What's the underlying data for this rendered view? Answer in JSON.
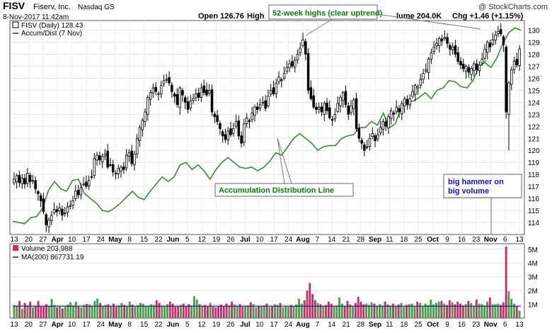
{
  "header": {
    "symbol": "FISV",
    "company": "Fiserv, Inc.",
    "exchange": "Nasdaq GS",
    "watermark": "@ StockCharts.com",
    "date_line": "8-Nov-2017 11:42am",
    "open_label": "Open 126.76",
    "high_label": "High",
    "volume_label": "lume 204.0K",
    "chg_label": "Chg +1.46 (+1.15%)"
  },
  "legend": {
    "price_series": "FISV (Daily) 128.43",
    "ad_series": "Accum/Dist (7 Nov)",
    "volume_series": "Volume 203,988",
    "ma_series": "MA(200) 867731.19"
  },
  "annotations": {
    "highs": "52-week highs (clear uptrend)",
    "adline": "Accumulation Distribution Line",
    "hammer_line1": "big hammer on",
    "hammer_line2": "big volume"
  },
  "colors": {
    "up_candle": "#ffffff",
    "down_candle": "#000000",
    "adline": "#3a8a3a",
    "vol_up": "#4f9a4f",
    "vol_down": "#c0306a",
    "ma_line": "#202080",
    "annotation_green": "#0a7a0a",
    "annotation_blue": "#1010c0"
  },
  "chart_data": [
    {
      "type": "candlestick",
      "title": "FISV (Daily) 128.43",
      "ylim": [
        113,
        130.8
      ],
      "y_ticks": [
        114,
        115,
        116,
        117,
        118,
        119,
        120,
        121,
        122,
        123,
        124,
        125,
        126,
        127,
        128,
        129,
        130
      ],
      "x_tick_labels": [
        "13",
        "20",
        "27",
        "Apr",
        "10",
        "17",
        "24",
        "May",
        "8",
        "15",
        "22",
        "Jun",
        "5",
        "12",
        "19",
        "26",
        "Jul",
        "10",
        "17",
        "24",
        "Aug",
        "7",
        "14",
        "21",
        "28",
        "Sep",
        "11",
        "18",
        "25",
        "Oct",
        "9",
        "16",
        "23",
        "Nov",
        "6",
        "13"
      ],
      "closes": [
        117.6,
        117.9,
        117.3,
        117.7,
        117.2,
        118.1,
        117.4,
        117.5,
        116.8,
        116.4,
        115.8,
        114.9,
        113.8,
        114.2,
        114.6,
        115.1,
        114.9,
        115.2,
        114.6,
        114.8,
        115.3,
        115.4,
        115.8,
        116.6,
        116.3,
        116.9,
        117.2,
        117.0,
        117.5,
        117.8,
        119.3,
        119.6,
        119.2,
        119.5,
        119.7,
        118.6,
        118.8,
        118.2,
        118.1,
        118.5,
        118.6,
        118.4,
        119.6,
        119.8,
        118.9,
        119.7,
        121.0,
        121.9,
        122.5,
        123.2,
        124.4,
        124.8,
        125.2,
        124.9,
        124.7,
        125.4,
        125.8,
        125.9,
        125.6,
        124.9,
        124.5,
        123.8,
        125.2,
        124.6,
        124.0,
        123.4,
        124.1,
        124.3,
        124.7,
        124.4,
        125.2,
        124.8,
        124.6,
        125.0,
        123.2,
        122.8,
        122.4,
        121.8,
        121.2,
        120.9,
        121.6,
        121.3,
        121.8,
        122.4,
        121.2,
        120.6,
        122.2,
        122.7,
        122.4,
        123.1,
        123.6,
        123.4,
        123.8,
        124.0,
        123.5,
        124.5,
        125.0,
        124.7,
        125.6,
        126.1,
        125.8,
        126.4,
        126.9,
        127.2,
        127.0,
        127.5,
        128.0,
        128.5,
        129.2,
        128.0,
        125.0,
        124.3,
        123.6,
        123.4,
        123.6,
        123.2,
        123.9,
        123.3,
        122.7,
        122.5,
        123.0,
        123.9,
        124.4,
        124.8,
        123.8,
        123.0,
        123.7,
        124.2,
        121.8,
        121.0,
        120.6,
        120.0,
        120.3,
        121.0,
        121.4,
        120.8,
        121.3,
        121.9,
        122.4,
        122.0,
        122.8,
        123.3,
        123.0,
        123.6,
        123.2,
        123.9,
        124.3,
        123.8,
        124.3,
        124.9,
        125.4,
        125.3,
        125.9,
        126.4,
        126.7,
        127.6,
        128.1,
        128.6,
        128.9,
        129.3,
        129.1,
        129.4,
        128.9,
        128.4,
        128.6,
        128.0,
        127.4,
        127.1,
        126.8,
        127.0,
        126.5,
        126.8,
        127.2,
        126.7,
        127.1,
        127.6,
        128.4,
        129.0,
        128.6,
        129.2,
        129.6,
        129.9,
        129.7,
        128.8,
        123.2,
        125.6,
        126.7,
        127.4,
        127.1,
        128.43
      ],
      "notes": "Values estimated from the price axis; one candle per trading day from mid-March to 8 Nov 2017."
    },
    {
      "type": "line",
      "title": "Accum/Dist (7 Nov)",
      "scale_ylim": [
        113,
        130.8
      ],
      "values": [
        114.1,
        114.0,
        113.9,
        114.4,
        114.5,
        115.2,
        116.7,
        117.4,
        116.8,
        116.6,
        117.5,
        117.6,
        116.4,
        116.0,
        115.6,
        115.0,
        114.9,
        115.2,
        115.6,
        116.1,
        116.6,
        116.1,
        115.9,
        116.6,
        117.2,
        117.8,
        117.4,
        117.8,
        118.8,
        119.0,
        118.4,
        118.8,
        118.3,
        117.6,
        118.4,
        119.0,
        119.4,
        119.0,
        118.6,
        118.5,
        118.6,
        118.3,
        118.6,
        119.1,
        119.8,
        119.6,
        120.3,
        121.0,
        121.4,
        121.0,
        120.6,
        120.0,
        120.3,
        120.4,
        120.4,
        121.0,
        121.2,
        121.3,
        121.9,
        121.9,
        122.4,
        122.1,
        123.1,
        121.9,
        122.2,
        123.6,
        124.1,
        124.1,
        124.4,
        124.8,
        124.3,
        125.0,
        125.2,
        125.8,
        125.7,
        125.3,
        125.2,
        125.8,
        127.0,
        127.3,
        126.9,
        127.7,
        128.9,
        129.8,
        130.2,
        130.0
      ]
    },
    {
      "type": "bar",
      "title": "Volume 203,988",
      "y_tick_labels": [
        "1M",
        "2M",
        "3M",
        "4M",
        "5M"
      ],
      "ylim": [
        0,
        5400000
      ],
      "ma200": 867731.19,
      "volume_scale": 1000000,
      "volumes_millions": [
        0.95,
        0.85,
        1.25,
        0.7,
        1.1,
        0.95,
        1.2,
        0.78,
        0.85,
        1.25,
        0.88,
        0.82,
        1.0,
        0.9,
        1.4,
        0.95,
        0.78,
        0.9,
        0.7,
        0.82,
        0.98,
        1.15,
        0.88,
        1.2,
        0.9,
        0.78,
        0.95,
        1.02,
        0.98,
        0.9,
        1.25,
        1.42,
        1.1,
        0.85,
        0.95,
        1.0,
        0.9,
        1.05,
        0.82,
        0.92,
        1.1,
        0.95,
        0.85,
        1.2,
        0.98,
        0.82,
        0.95,
        1.1,
        1.05,
        0.9,
        0.88,
        1.0,
        0.95,
        1.3,
        1.1,
        0.92,
        0.85,
        1.0,
        1.2,
        1.05,
        0.82,
        0.9,
        0.95,
        1.05,
        0.88,
        1.0,
        0.92,
        1.6,
        1.35,
        1.0,
        0.88,
        0.95,
        0.9,
        1.1,
        0.82,
        0.78,
        0.9,
        0.98,
        0.85,
        1.05,
        0.92,
        1.2,
        0.98,
        0.88,
        1.0,
        0.82,
        0.85,
        0.92,
        1.15,
        1.0,
        0.78,
        0.9,
        0.85,
        0.92,
        1.05,
        0.8,
        0.88,
        1.0,
        0.95,
        1.1,
        0.78,
        0.9,
        0.82,
        0.95,
        0.88,
        1.0,
        1.4,
        1.05,
        1.3,
        2.0,
        2.55,
        1.75,
        1.3,
        1.1,
        1.0,
        0.9,
        0.95,
        1.2,
        1.05,
        0.88,
        0.92,
        1.5,
        1.05,
        0.85,
        1.25,
        1.0,
        0.9,
        1.1,
        1.55,
        1.2,
        1.0,
        1.05,
        0.95,
        1.15,
        1.05,
        0.9,
        1.0,
        0.85,
        1.2,
        1.0,
        0.92,
        1.05,
        0.88,
        0.98,
        1.1,
        0.82,
        0.95,
        1.0,
        1.05,
        0.9,
        1.2,
        1.1,
        0.9,
        1.05,
        0.95,
        1.35,
        1.0,
        1.1,
        1.2,
        1.25,
        1.05,
        0.95,
        1.3,
        1.15,
        1.0,
        1.2,
        1.05,
        0.92,
        1.0,
        1.25,
        1.1,
        0.9,
        1.35,
        1.05,
        1.0,
        0.92,
        1.2,
        1.5,
        1.0,
        1.0,
        1.05,
        0.95,
        1.15,
        5.2,
        1.95,
        1.4,
        1.05,
        0.85,
        0.55
      ]
    }
  ]
}
